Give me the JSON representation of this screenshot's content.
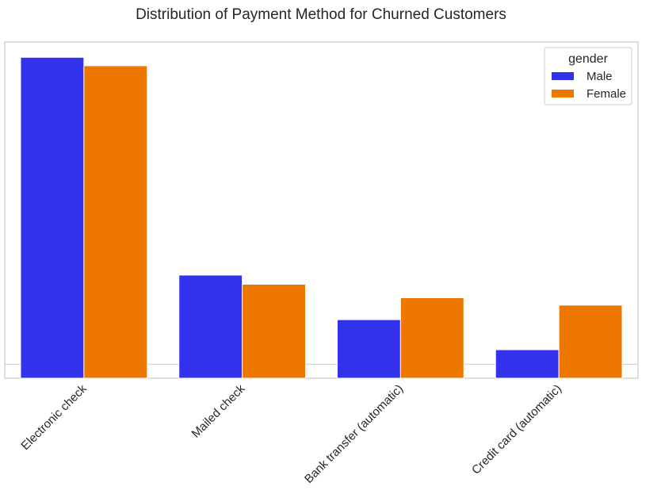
{
  "chart_data": {
    "type": "bar",
    "title": "Distribution of Payment Method for Churned Customers",
    "xlabel": "",
    "ylabel": "",
    "categories": [
      "Electronic check",
      "Mailed check",
      "Bank transfer (automatic)",
      "Credit card (automatic)"
    ],
    "series": [
      {
        "name": "Male",
        "values": [
          1205,
          350,
          175,
          57
        ],
        "color": "#3333ee"
      },
      {
        "name": "Female",
        "values": [
          1172,
          314,
          261,
          232
        ],
        "color": "#ee7700"
      }
    ],
    "ylim": [
      -55,
      1265
    ],
    "legend": {
      "title": "gender",
      "position": "top-right"
    },
    "grid": true,
    "y_ticks_shown": false,
    "x_tick_rotation": -45
  }
}
